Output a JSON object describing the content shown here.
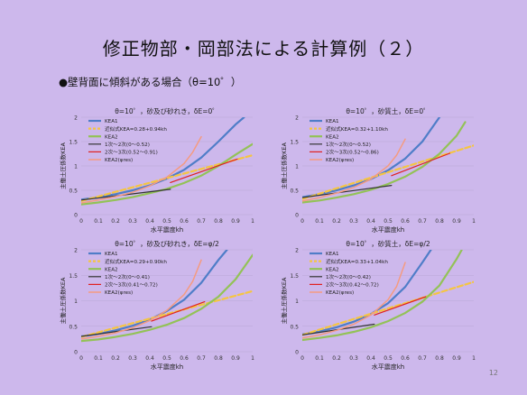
{
  "slide": {
    "title": "修正物部・岡部法による計算例（２）",
    "subtitle": "●壁背面に傾斜がある場合（θ=10゜）",
    "page_number": "12"
  },
  "colors": {
    "KEA1": "#4f7dc8",
    "approx": "#f5c542",
    "KEA2": "#93c257",
    "seg1": "#333333",
    "seg2": "#e02020",
    "KEA2res": "#f59b80",
    "grid": "#b9a9d6",
    "axis_text": "#333333"
  },
  "chart_data": [
    {
      "type": "line",
      "title": "θ=10゜，砂及び砂れき，δE=0゜",
      "xlabel": "水平震度kh",
      "ylabel": "主働土圧係数KEA",
      "xlim": [
        0,
        1
      ],
      "ylim": [
        0,
        2
      ],
      "xticks": [
        "0",
        "0.1",
        "0.2",
        "0.3",
        "0.4",
        "0.5",
        "0.6",
        "0.7",
        "0.8",
        "0.9",
        "1"
      ],
      "yticks": [
        "0",
        "0.5",
        "1",
        "1.5",
        "2"
      ],
      "grid": true,
      "legend_position": "top-left",
      "series": [
        {
          "name": "KEA1",
          "color_key": "KEA1",
          "width": 2.2,
          "dash": "",
          "x": [
            0,
            0.1,
            0.2,
            0.3,
            0.4,
            0.5,
            0.6,
            0.7,
            0.8,
            0.9,
            0.95
          ],
          "y": [
            0.31,
            0.36,
            0.42,
            0.5,
            0.6,
            0.74,
            0.92,
            1.17,
            1.5,
            1.85,
            2.0
          ]
        },
        {
          "name": "近似式KEA=0.28+0.94kh",
          "color_key": "approx",
          "width": 2.2,
          "dash": "6,3",
          "x": [
            0,
            1
          ],
          "y": [
            0.28,
            1.22
          ]
        },
        {
          "name": "KEA2",
          "color_key": "KEA2",
          "width": 2.2,
          "dash": "",
          "x": [
            0,
            0.1,
            0.2,
            0.3,
            0.4,
            0.5,
            0.6,
            0.7,
            0.8,
            0.9,
            1.0
          ],
          "y": [
            0.21,
            0.25,
            0.3,
            0.36,
            0.44,
            0.53,
            0.65,
            0.8,
            1.0,
            1.23,
            1.45
          ]
        },
        {
          "name": "1次～2次(0～0.52)",
          "color_key": "seg1",
          "width": 1.2,
          "dash": "",
          "x": [
            0,
            0.52
          ],
          "y": [
            0.3,
            0.52
          ]
        },
        {
          "name": "2次～3次(0.52～0.91)",
          "color_key": "seg2",
          "width": 1.2,
          "dash": "",
          "x": [
            0.52,
            0.91
          ],
          "y": [
            0.66,
            1.14
          ]
        },
        {
          "name": "KEA2(φres)",
          "color_key": "KEA2res",
          "width": 1.5,
          "dash": "",
          "x": [
            0,
            0.1,
            0.2,
            0.3,
            0.4,
            0.5,
            0.6,
            0.65,
            0.7
          ],
          "y": [
            0.24,
            0.3,
            0.37,
            0.46,
            0.59,
            0.77,
            1.05,
            1.28,
            1.6
          ]
        }
      ]
    },
    {
      "type": "line",
      "title": "θ=10゜，砂質土，δE=0゜",
      "xlabel": "水平震度kh",
      "ylabel": "主働土圧係数KEA",
      "xlim": [
        0,
        1
      ],
      "ylim": [
        0,
        2
      ],
      "xticks": [
        "0",
        "0.1",
        "0.2",
        "0.3",
        "0.4",
        "0.5",
        "0.6",
        "0.7",
        "0.8",
        "0.9",
        "1"
      ],
      "yticks": [
        "0",
        "0.5",
        "1",
        "1.5",
        "2"
      ],
      "grid": true,
      "legend_position": "top-left",
      "series": [
        {
          "name": "KEA1",
          "color_key": "KEA1",
          "width": 2.2,
          "dash": "",
          "x": [
            0,
            0.1,
            0.2,
            0.3,
            0.4,
            0.5,
            0.6,
            0.7,
            0.75,
            0.8
          ],
          "y": [
            0.36,
            0.42,
            0.5,
            0.6,
            0.73,
            0.91,
            1.15,
            1.5,
            1.75,
            2.0
          ]
        },
        {
          "name": "近似式KEA=0.32+1.10kh",
          "color_key": "approx",
          "width": 2.2,
          "dash": "6,3",
          "x": [
            0,
            1
          ],
          "y": [
            0.32,
            1.42
          ]
        },
        {
          "name": "KEA2",
          "color_key": "KEA2",
          "width": 2.2,
          "dash": "",
          "x": [
            0,
            0.1,
            0.2,
            0.3,
            0.4,
            0.5,
            0.6,
            0.7,
            0.8,
            0.9,
            0.95
          ],
          "y": [
            0.25,
            0.29,
            0.35,
            0.42,
            0.51,
            0.63,
            0.78,
            0.98,
            1.25,
            1.62,
            1.9
          ]
        },
        {
          "name": "1次～2次(0～0.52)",
          "color_key": "seg1",
          "width": 1.2,
          "dash": "",
          "x": [
            0,
            0.52
          ],
          "y": [
            0.35,
            0.6
          ]
        },
        {
          "name": "2次～3次(0.52～0.86)",
          "color_key": "seg2",
          "width": 1.2,
          "dash": "",
          "x": [
            0.52,
            0.86
          ],
          "y": [
            0.8,
            1.26
          ]
        },
        {
          "name": "KEA2(φres)",
          "color_key": "KEA2res",
          "width": 1.5,
          "dash": "",
          "x": [
            0,
            0.1,
            0.2,
            0.3,
            0.4,
            0.5,
            0.55,
            0.6
          ],
          "y": [
            0.28,
            0.35,
            0.44,
            0.56,
            0.73,
            1.0,
            1.22,
            1.55
          ]
        }
      ]
    },
    {
      "type": "line",
      "title": "θ=10゜，砂及び砂れき，δE=φ/2",
      "xlabel": "水平震度kh",
      "ylabel": "主働土圧係数KEA",
      "xlim": [
        0,
        1
      ],
      "ylim": [
        0,
        2
      ],
      "xticks": [
        "0",
        "0.1",
        "0.2",
        "0.3",
        "0.4",
        "0.5",
        "0.6",
        "0.7",
        "0.8",
        "0.9",
        "1"
      ],
      "yticks": [
        "0",
        "0.5",
        "1",
        "1.5",
        "2"
      ],
      "grid": true,
      "legend_position": "top-left",
      "series": [
        {
          "name": "KEA1",
          "color_key": "KEA1",
          "width": 2.2,
          "dash": "",
          "x": [
            0,
            0.1,
            0.2,
            0.3,
            0.4,
            0.5,
            0.6,
            0.7,
            0.8,
            0.85
          ],
          "y": [
            0.3,
            0.35,
            0.42,
            0.51,
            0.63,
            0.8,
            1.02,
            1.35,
            1.8,
            2.0
          ]
        },
        {
          "name": "近似式KEA=0.29+0.90kh",
          "color_key": "approx",
          "width": 2.2,
          "dash": "6,3",
          "x": [
            0,
            1
          ],
          "y": [
            0.29,
            1.19
          ]
        },
        {
          "name": "KEA2",
          "color_key": "KEA2",
          "width": 2.2,
          "dash": "",
          "x": [
            0,
            0.1,
            0.2,
            0.3,
            0.4,
            0.5,
            0.6,
            0.7,
            0.8,
            0.9,
            1.0
          ],
          "y": [
            0.21,
            0.24,
            0.29,
            0.35,
            0.43,
            0.53,
            0.66,
            0.84,
            1.08,
            1.42,
            1.9
          ]
        },
        {
          "name": "1次～2次(0～0.41)",
          "color_key": "seg1",
          "width": 1.2,
          "dash": "",
          "x": [
            0,
            0.41
          ],
          "y": [
            0.3,
            0.49
          ]
        },
        {
          "name": "2次～3次(0.41～0.72)",
          "color_key": "seg2",
          "width": 1.2,
          "dash": "",
          "x": [
            0.41,
            0.72
          ],
          "y": [
            0.6,
            0.98
          ]
        },
        {
          "name": "KEA2(φres)",
          "color_key": "KEA2res",
          "width": 1.5,
          "dash": "",
          "x": [
            0,
            0.1,
            0.2,
            0.3,
            0.4,
            0.5,
            0.6,
            0.65,
            0.7
          ],
          "y": [
            0.25,
            0.3,
            0.37,
            0.47,
            0.61,
            0.81,
            1.12,
            1.38,
            1.8
          ]
        }
      ]
    },
    {
      "type": "line",
      "title": "θ=10゜，砂質土，δE=φ/2",
      "xlabel": "水平震度kh",
      "ylabel": "主働土圧係数KEA",
      "xlim": [
        0,
        1
      ],
      "ylim": [
        0,
        2
      ],
      "xticks": [
        "0",
        "0.1",
        "0.2",
        "0.3",
        "0.4",
        "0.5",
        "0.6",
        "0.7",
        "0.8",
        "0.9",
        "1"
      ],
      "yticks": [
        "0",
        "0.5",
        "1",
        "1.5",
        "2"
      ],
      "grid": true,
      "legend_position": "top-left",
      "series": [
        {
          "name": "KEA1",
          "color_key": "KEA1",
          "width": 2.2,
          "dash": "",
          "x": [
            0,
            0.1,
            0.2,
            0.3,
            0.4,
            0.5,
            0.6,
            0.7,
            0.75
          ],
          "y": [
            0.34,
            0.4,
            0.48,
            0.59,
            0.74,
            0.95,
            1.27,
            1.75,
            2.0
          ]
        },
        {
          "name": "近似式KEA=0.33+1.04kh",
          "color_key": "approx",
          "width": 2.2,
          "dash": "6,3",
          "x": [
            0,
            1
          ],
          "y": [
            0.33,
            1.37
          ]
        },
        {
          "name": "KEA2",
          "color_key": "KEA2",
          "width": 2.2,
          "dash": "",
          "x": [
            0,
            0.1,
            0.2,
            0.3,
            0.4,
            0.5,
            0.6,
            0.7,
            0.8,
            0.9,
            0.93
          ],
          "y": [
            0.23,
            0.27,
            0.32,
            0.39,
            0.48,
            0.6,
            0.76,
            0.98,
            1.3,
            1.82,
            2.0
          ]
        },
        {
          "name": "1次～2次(0～0.42)",
          "color_key": "seg1",
          "width": 1.2,
          "dash": "",
          "x": [
            0,
            0.42
          ],
          "y": [
            0.33,
            0.54
          ]
        },
        {
          "name": "2次～3次(0.42～0.72)",
          "color_key": "seg2",
          "width": 1.2,
          "dash": "",
          "x": [
            0.42,
            0.72
          ],
          "y": [
            0.72,
            1.08
          ]
        },
        {
          "name": "KEA2(φres)",
          "color_key": "KEA2res",
          "width": 1.5,
          "dash": "",
          "x": [
            0,
            0.1,
            0.2,
            0.3,
            0.4,
            0.5,
            0.55,
            0.6
          ],
          "y": [
            0.27,
            0.33,
            0.42,
            0.54,
            0.72,
            1.02,
            1.28,
            1.75
          ]
        }
      ]
    }
  ]
}
